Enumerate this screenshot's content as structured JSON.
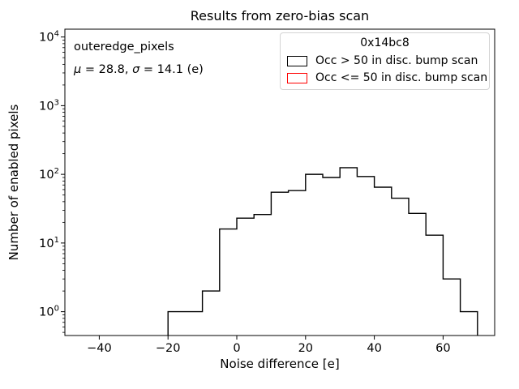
{
  "figure": {
    "title": "Results from zero-bias scan",
    "x_axis_label": "Noise difference [e]",
    "y_axis_label": "Number of enabled pixels",
    "annotation": {
      "dataset": "outeredge_pixels",
      "mu_symbol": "μ",
      "mu_text": " = 28.8, ",
      "sigma_symbol": "σ",
      "sigma_text": " = 14.1 (e)"
    },
    "legend": {
      "title": "0x14bc8",
      "entries": [
        {
          "label": "Occ > 50 in disc. bump scan",
          "color": "#000000"
        },
        {
          "label": "Occ <= 50 in disc. bump scan",
          "color": "#ff0000"
        }
      ]
    }
  },
  "chart_data": {
    "type": "bar",
    "subtype": "step_histogram",
    "title": "Results from zero-bias scan",
    "xlabel": "Noise difference [e]",
    "ylabel": "Number of enabled pixels",
    "yscale": "log",
    "grid": false,
    "xlim": [
      -50,
      75
    ],
    "ylim": [
      0.45,
      13000
    ],
    "x_ticks": [
      -40,
      -20,
      0,
      20,
      40,
      60
    ],
    "y_tick_exponents": [
      0,
      1,
      2,
      3,
      4
    ],
    "legend_position": "upper right",
    "legend_title": "0x14bc8",
    "annotation_label": "outeredge_pixels",
    "stats": {
      "mu": 28.8,
      "sigma": 14.1,
      "unit": "e"
    },
    "bin_edges": [
      -20,
      -15,
      -10,
      -5,
      0,
      5,
      10,
      15,
      20,
      25,
      30,
      35,
      40,
      45,
      50,
      55,
      60,
      65,
      70
    ],
    "series": [
      {
        "name": "Occ > 50 in disc. bump scan",
        "color": "#000000",
        "counts": [
          1,
          1,
          2,
          16,
          23,
          26,
          55,
          58,
          100,
          90,
          125,
          93,
          65,
          45,
          27,
          13,
          3,
          1
        ]
      },
      {
        "name": "Occ <= 50 in disc. bump scan",
        "color": "#ff0000",
        "counts": []
      }
    ]
  }
}
